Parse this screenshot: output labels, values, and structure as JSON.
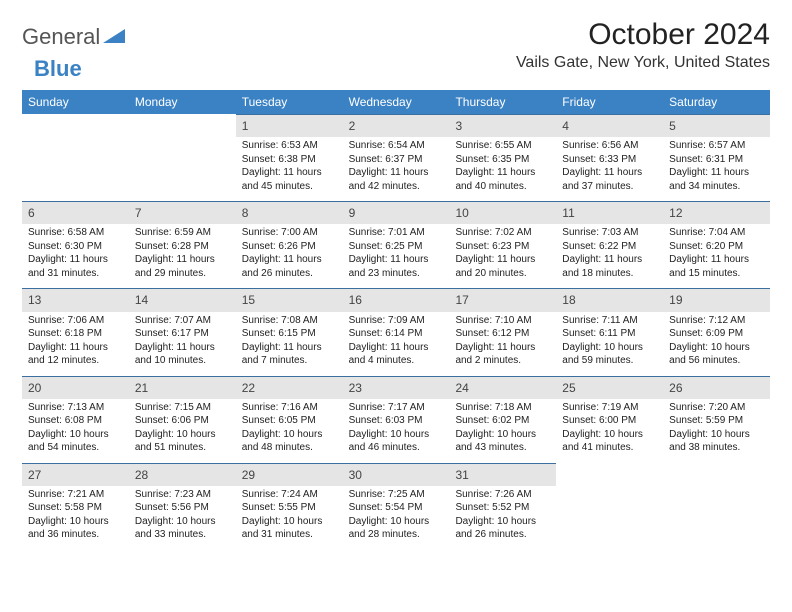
{
  "brand": {
    "part1": "General",
    "part2": "Blue"
  },
  "title": "October 2024",
  "location": "Vails Gate, New York, United States",
  "colors": {
    "header_bg": "#3b82c4",
    "header_text": "#ffffff",
    "daynum_bg": "#e5e5e5",
    "daynum_border": "#3b6fa0",
    "body_text": "#222222",
    "page_bg": "#ffffff"
  },
  "day_names": [
    "Sunday",
    "Monday",
    "Tuesday",
    "Wednesday",
    "Thursday",
    "Friday",
    "Saturday"
  ],
  "weeks": [
    [
      null,
      null,
      {
        "n": "1",
        "sr": "6:53 AM",
        "ss": "6:38 PM",
        "dl": "11 hours and 45 minutes."
      },
      {
        "n": "2",
        "sr": "6:54 AM",
        "ss": "6:37 PM",
        "dl": "11 hours and 42 minutes."
      },
      {
        "n": "3",
        "sr": "6:55 AM",
        "ss": "6:35 PM",
        "dl": "11 hours and 40 minutes."
      },
      {
        "n": "4",
        "sr": "6:56 AM",
        "ss": "6:33 PM",
        "dl": "11 hours and 37 minutes."
      },
      {
        "n": "5",
        "sr": "6:57 AM",
        "ss": "6:31 PM",
        "dl": "11 hours and 34 minutes."
      }
    ],
    [
      {
        "n": "6",
        "sr": "6:58 AM",
        "ss": "6:30 PM",
        "dl": "11 hours and 31 minutes."
      },
      {
        "n": "7",
        "sr": "6:59 AM",
        "ss": "6:28 PM",
        "dl": "11 hours and 29 minutes."
      },
      {
        "n": "8",
        "sr": "7:00 AM",
        "ss": "6:26 PM",
        "dl": "11 hours and 26 minutes."
      },
      {
        "n": "9",
        "sr": "7:01 AM",
        "ss": "6:25 PM",
        "dl": "11 hours and 23 minutes."
      },
      {
        "n": "10",
        "sr": "7:02 AM",
        "ss": "6:23 PM",
        "dl": "11 hours and 20 minutes."
      },
      {
        "n": "11",
        "sr": "7:03 AM",
        "ss": "6:22 PM",
        "dl": "11 hours and 18 minutes."
      },
      {
        "n": "12",
        "sr": "7:04 AM",
        "ss": "6:20 PM",
        "dl": "11 hours and 15 minutes."
      }
    ],
    [
      {
        "n": "13",
        "sr": "7:06 AM",
        "ss": "6:18 PM",
        "dl": "11 hours and 12 minutes."
      },
      {
        "n": "14",
        "sr": "7:07 AM",
        "ss": "6:17 PM",
        "dl": "11 hours and 10 minutes."
      },
      {
        "n": "15",
        "sr": "7:08 AM",
        "ss": "6:15 PM",
        "dl": "11 hours and 7 minutes."
      },
      {
        "n": "16",
        "sr": "7:09 AM",
        "ss": "6:14 PM",
        "dl": "11 hours and 4 minutes."
      },
      {
        "n": "17",
        "sr": "7:10 AM",
        "ss": "6:12 PM",
        "dl": "11 hours and 2 minutes."
      },
      {
        "n": "18",
        "sr": "7:11 AM",
        "ss": "6:11 PM",
        "dl": "10 hours and 59 minutes."
      },
      {
        "n": "19",
        "sr": "7:12 AM",
        "ss": "6:09 PM",
        "dl": "10 hours and 56 minutes."
      }
    ],
    [
      {
        "n": "20",
        "sr": "7:13 AM",
        "ss": "6:08 PM",
        "dl": "10 hours and 54 minutes."
      },
      {
        "n": "21",
        "sr": "7:15 AM",
        "ss": "6:06 PM",
        "dl": "10 hours and 51 minutes."
      },
      {
        "n": "22",
        "sr": "7:16 AM",
        "ss": "6:05 PM",
        "dl": "10 hours and 48 minutes."
      },
      {
        "n": "23",
        "sr": "7:17 AM",
        "ss": "6:03 PM",
        "dl": "10 hours and 46 minutes."
      },
      {
        "n": "24",
        "sr": "7:18 AM",
        "ss": "6:02 PM",
        "dl": "10 hours and 43 minutes."
      },
      {
        "n": "25",
        "sr": "7:19 AM",
        "ss": "6:00 PM",
        "dl": "10 hours and 41 minutes."
      },
      {
        "n": "26",
        "sr": "7:20 AM",
        "ss": "5:59 PM",
        "dl": "10 hours and 38 minutes."
      }
    ],
    [
      {
        "n": "27",
        "sr": "7:21 AM",
        "ss": "5:58 PM",
        "dl": "10 hours and 36 minutes."
      },
      {
        "n": "28",
        "sr": "7:23 AM",
        "ss": "5:56 PM",
        "dl": "10 hours and 33 minutes."
      },
      {
        "n": "29",
        "sr": "7:24 AM",
        "ss": "5:55 PM",
        "dl": "10 hours and 31 minutes."
      },
      {
        "n": "30",
        "sr": "7:25 AM",
        "ss": "5:54 PM",
        "dl": "10 hours and 28 minutes."
      },
      {
        "n": "31",
        "sr": "7:26 AM",
        "ss": "5:52 PM",
        "dl": "10 hours and 26 minutes."
      },
      null,
      null
    ]
  ],
  "labels": {
    "sunrise": "Sunrise:",
    "sunset": "Sunset:",
    "daylight": "Daylight:"
  }
}
